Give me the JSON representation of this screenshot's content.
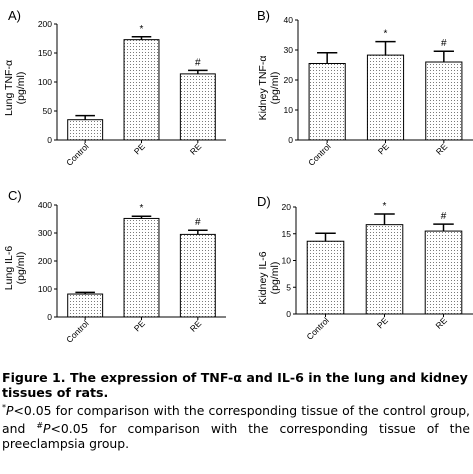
{
  "chart_data": [
    {
      "type": "bar",
      "panel_label": "A)",
      "ylabel": "Lung TNF-α",
      "yunit": "(pg/ml)",
      "categories": [
        "Control",
        "PE",
        "RE"
      ],
      "values": [
        35,
        173,
        114
      ],
      "errors": [
        7,
        5,
        6
      ],
      "significance": [
        "",
        "*",
        "#"
      ],
      "ylim": [
        0,
        200
      ],
      "yticks": [
        "0",
        "50",
        "100",
        "150",
        "200"
      ]
    },
    {
      "type": "bar",
      "panel_label": "B)",
      "ylabel": "Kidney TNF-α",
      "yunit": "(pg/ml)",
      "categories": [
        "Control",
        "PE",
        "RE"
      ],
      "values": [
        25.5,
        28.3,
        26
      ],
      "errors": [
        3.6,
        4.5,
        3.6
      ],
      "significance": [
        "",
        "*",
        "#"
      ],
      "ylim": [
        0,
        40
      ],
      "yticks": [
        "0",
        "10",
        "20",
        "30",
        "40"
      ]
    },
    {
      "type": "bar",
      "panel_label": "C)",
      "ylabel": "Lung IL-6",
      "yunit": "(pg/ml)",
      "categories": [
        "Control",
        "PE",
        "RE"
      ],
      "values": [
        82,
        352,
        295
      ],
      "errors": [
        6,
        8,
        15
      ],
      "significance": [
        "",
        "*",
        "#"
      ],
      "ylim": [
        0,
        400
      ],
      "yticks": [
        "0",
        "100",
        "200",
        "300",
        "400"
      ]
    },
    {
      "type": "bar",
      "panel_label": "D)",
      "ylabel": "Kidney IL-6",
      "yunit": "(pg/ml)",
      "categories": [
        "Control",
        "PE",
        "RE"
      ],
      "values": [
        13.6,
        16.7,
        15.5
      ],
      "errors": [
        1.5,
        2.0,
        1.3
      ],
      "significance": [
        "",
        "*",
        "#"
      ],
      "ylim": [
        0,
        20
      ],
      "yticks": [
        "0",
        "5",
        "10",
        "15",
        "20"
      ]
    }
  ],
  "caption": {
    "title": "Figure 1. The expression of TNF-α and IL-6 in the lung and kidney tissues of rats.",
    "note_star_mark": "*",
    "note_part1": "P<0.05 for comparison with the corresponding tissue of the control group, and ",
    "note_hash_mark": "#",
    "note_part2": "P<0.05 for comparison with the corresponding tissue of the preeclampsia group."
  },
  "colors": {
    "bar_fill": "#ffffff",
    "bar_dots": "#7a7a7a",
    "axis": "#000000"
  }
}
